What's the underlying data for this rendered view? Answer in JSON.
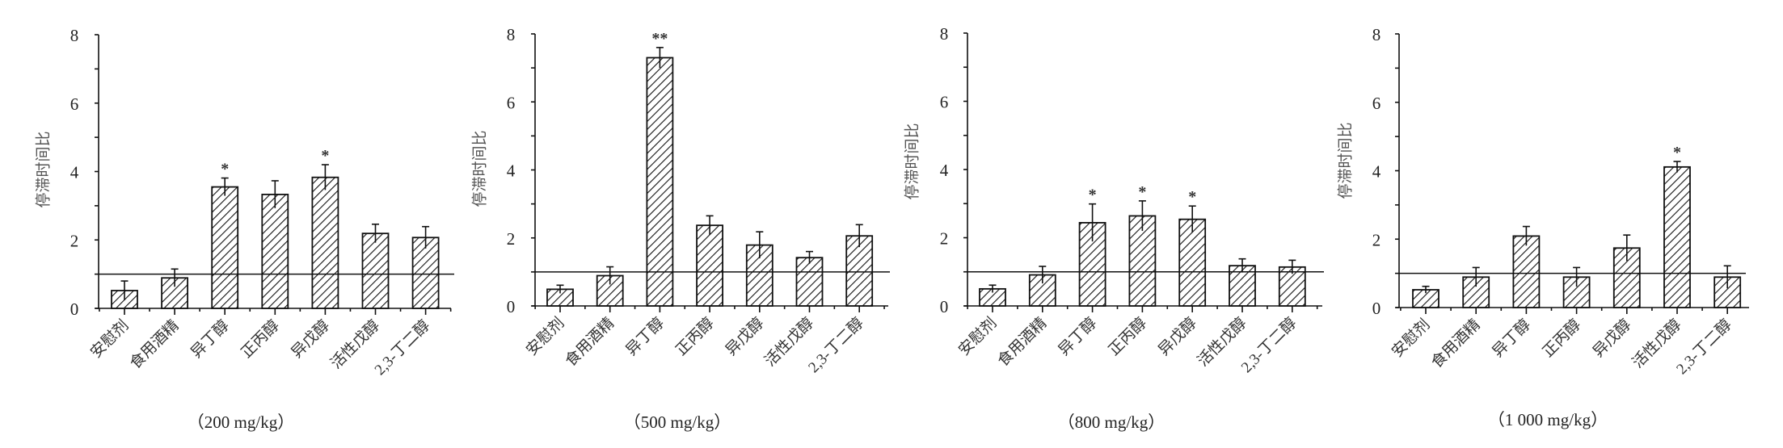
{
  "chart_data": [
    {
      "type": "bar",
      "title": "",
      "caption": "（200 mg/kg）",
      "xlabel": "",
      "ylabel": "停滞时间比",
      "ylim": [
        0,
        8
      ],
      "yticks": [
        0,
        2,
        4,
        6,
        8
      ],
      "reference_line": 1,
      "categories": [
        "安慰剂",
        "食用酒精",
        "异丁醇",
        "正丙醇",
        "异戊醇",
        "活性戊醇",
        "2,3-丁二醇"
      ],
      "values": [
        0.52,
        0.89,
        3.55,
        3.33,
        3.83,
        2.19,
        2.07
      ],
      "errors": [
        0.28,
        0.26,
        0.26,
        0.4,
        0.37,
        0.27,
        0.32
      ],
      "significance": [
        "",
        "",
        "*",
        "",
        "*",
        "",
        ""
      ]
    },
    {
      "type": "bar",
      "title": "",
      "caption": "（500 mg/kg）",
      "xlabel": "",
      "ylabel": "停滞时间比",
      "ylim": [
        0,
        8
      ],
      "yticks": [
        0,
        2,
        4,
        6,
        8
      ],
      "reference_line": 1,
      "categories": [
        "安慰剂",
        "食用酒精",
        "异丁醇",
        "正丙醇",
        "异戊醇",
        "活性戊醇",
        "2,3-丁二醇"
      ],
      "values": [
        0.49,
        0.89,
        7.3,
        2.37,
        1.79,
        1.42,
        2.06
      ],
      "errors": [
        0.12,
        0.26,
        0.3,
        0.28,
        0.39,
        0.18,
        0.33
      ],
      "significance": [
        "",
        "",
        "**",
        "",
        "",
        "",
        ""
      ]
    },
    {
      "type": "bar",
      "title": "",
      "caption": "（800 mg/kg）",
      "xlabel": "",
      "ylabel": "停滞时间比",
      "ylim": [
        0,
        8
      ],
      "yticks": [
        0,
        2,
        4,
        6,
        8
      ],
      "reference_line": 1,
      "categories": [
        "安慰剂",
        "食用酒精",
        "异丁醇",
        "正丙醇",
        "异戊醇",
        "活性戊醇",
        "2,3-丁二醇"
      ],
      "values": [
        0.5,
        0.91,
        2.44,
        2.64,
        2.54,
        1.18,
        1.14
      ],
      "errors": [
        0.11,
        0.25,
        0.55,
        0.44,
        0.39,
        0.2,
        0.2
      ],
      "significance": [
        "",
        "",
        "*",
        "*",
        "*",
        "",
        ""
      ]
    },
    {
      "type": "bar",
      "title": "",
      "caption": "（1 000 mg/kg）",
      "xlabel": "",
      "ylabel": "停滞时间比",
      "ylim": [
        0,
        8
      ],
      "yticks": [
        0,
        2,
        4,
        6,
        8
      ],
      "reference_line": 1,
      "categories": [
        "安慰剂",
        "食用酒精",
        "异丁醇",
        "正丙醇",
        "异戊醇",
        "活性戊醇",
        "2,3-丁二醇"
      ],
      "values": [
        0.52,
        0.89,
        2.09,
        0.89,
        1.74,
        4.11,
        0.89
      ],
      "errors": [
        0.1,
        0.28,
        0.28,
        0.28,
        0.38,
        0.16,
        0.33
      ],
      "significance": [
        "",
        "",
        "",
        "",
        "",
        "*",
        ""
      ]
    }
  ],
  "colors": {
    "bar_stroke": "#111111",
    "bar_hatch": "#111111",
    "bar_fill": "#ffffff",
    "ylabel_color": "#555555"
  }
}
